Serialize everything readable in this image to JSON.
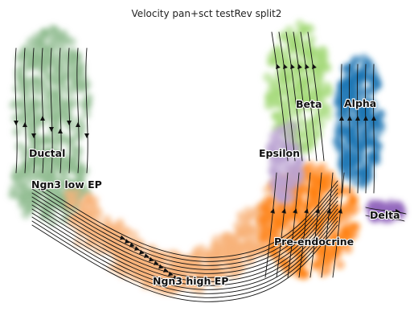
{
  "chart_data": {
    "type": "scatter",
    "title": "Velocity pan+sct testRev split2",
    "xlabel": "",
    "ylabel": "",
    "grid": false,
    "axes_visible": false,
    "style": "velocity stream embedding with cluster labels on data",
    "series": [
      {
        "name": "Ductal",
        "color": "#8fbc8f"
      },
      {
        "name": "Ngn3 low EP",
        "color": "#8fbc8f"
      },
      {
        "name": "Ngn3 high EP",
        "color": "#f7b37a"
      },
      {
        "name": "Pre-endocrine",
        "color": "#ff7f0e"
      },
      {
        "name": "Beta",
        "color": "#a3d977"
      },
      {
        "name": "Alpha",
        "color": "#1f77b4"
      },
      {
        "name": "Delta",
        "color": "#9467bd"
      },
      {
        "name": "Epsilon",
        "color": "#b9a3d1"
      }
    ]
  },
  "labels": {
    "ductal": "Ductal",
    "ngn3_low": "Ngn3 low EP",
    "ngn3_high": "Ngn3 high EP",
    "pre_endocrine": "Pre-endocrine",
    "beta": "Beta",
    "alpha": "Alpha",
    "delta": "Delta",
    "epsilon": "Epsilon"
  }
}
